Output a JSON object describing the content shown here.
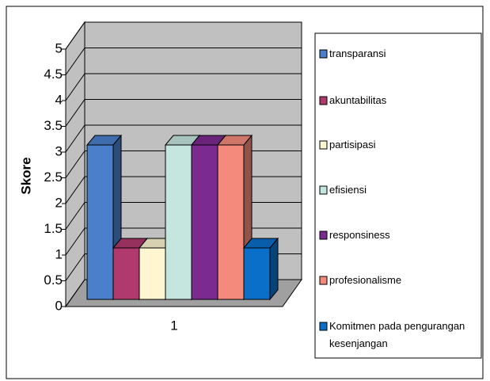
{
  "chart_data": {
    "type": "bar3d",
    "y_label": "Skore",
    "categories": [
      "1"
    ],
    "series": [
      {
        "name": "transparansi",
        "color": "#4a7fcb",
        "values": [
          3
        ]
      },
      {
        "name": "akuntabilitas",
        "color": "#b03a6e",
        "values": [
          1
        ]
      },
      {
        "name": "partisipasi",
        "color": "#fdf6d0",
        "values": [
          1
        ]
      },
      {
        "name": "efisiensi",
        "color": "#c5e5df",
        "values": [
          3
        ]
      },
      {
        "name": "responsiness",
        "color": "#7b2a8f",
        "values": [
          3
        ]
      },
      {
        "name": "profesionalisme",
        "color": "#f48a7c",
        "values": [
          3
        ]
      },
      {
        "name": "Komitmen pada pengurangan kesenjangan",
        "color": "#0a6fc9",
        "values": [
          1
        ]
      }
    ],
    "ylim": [
      0,
      5
    ],
    "yticks": [
      0,
      0.5,
      1,
      1.5,
      2,
      2.5,
      3,
      3.5,
      4,
      4.5,
      5
    ],
    "grid": true,
    "legend": "right"
  }
}
